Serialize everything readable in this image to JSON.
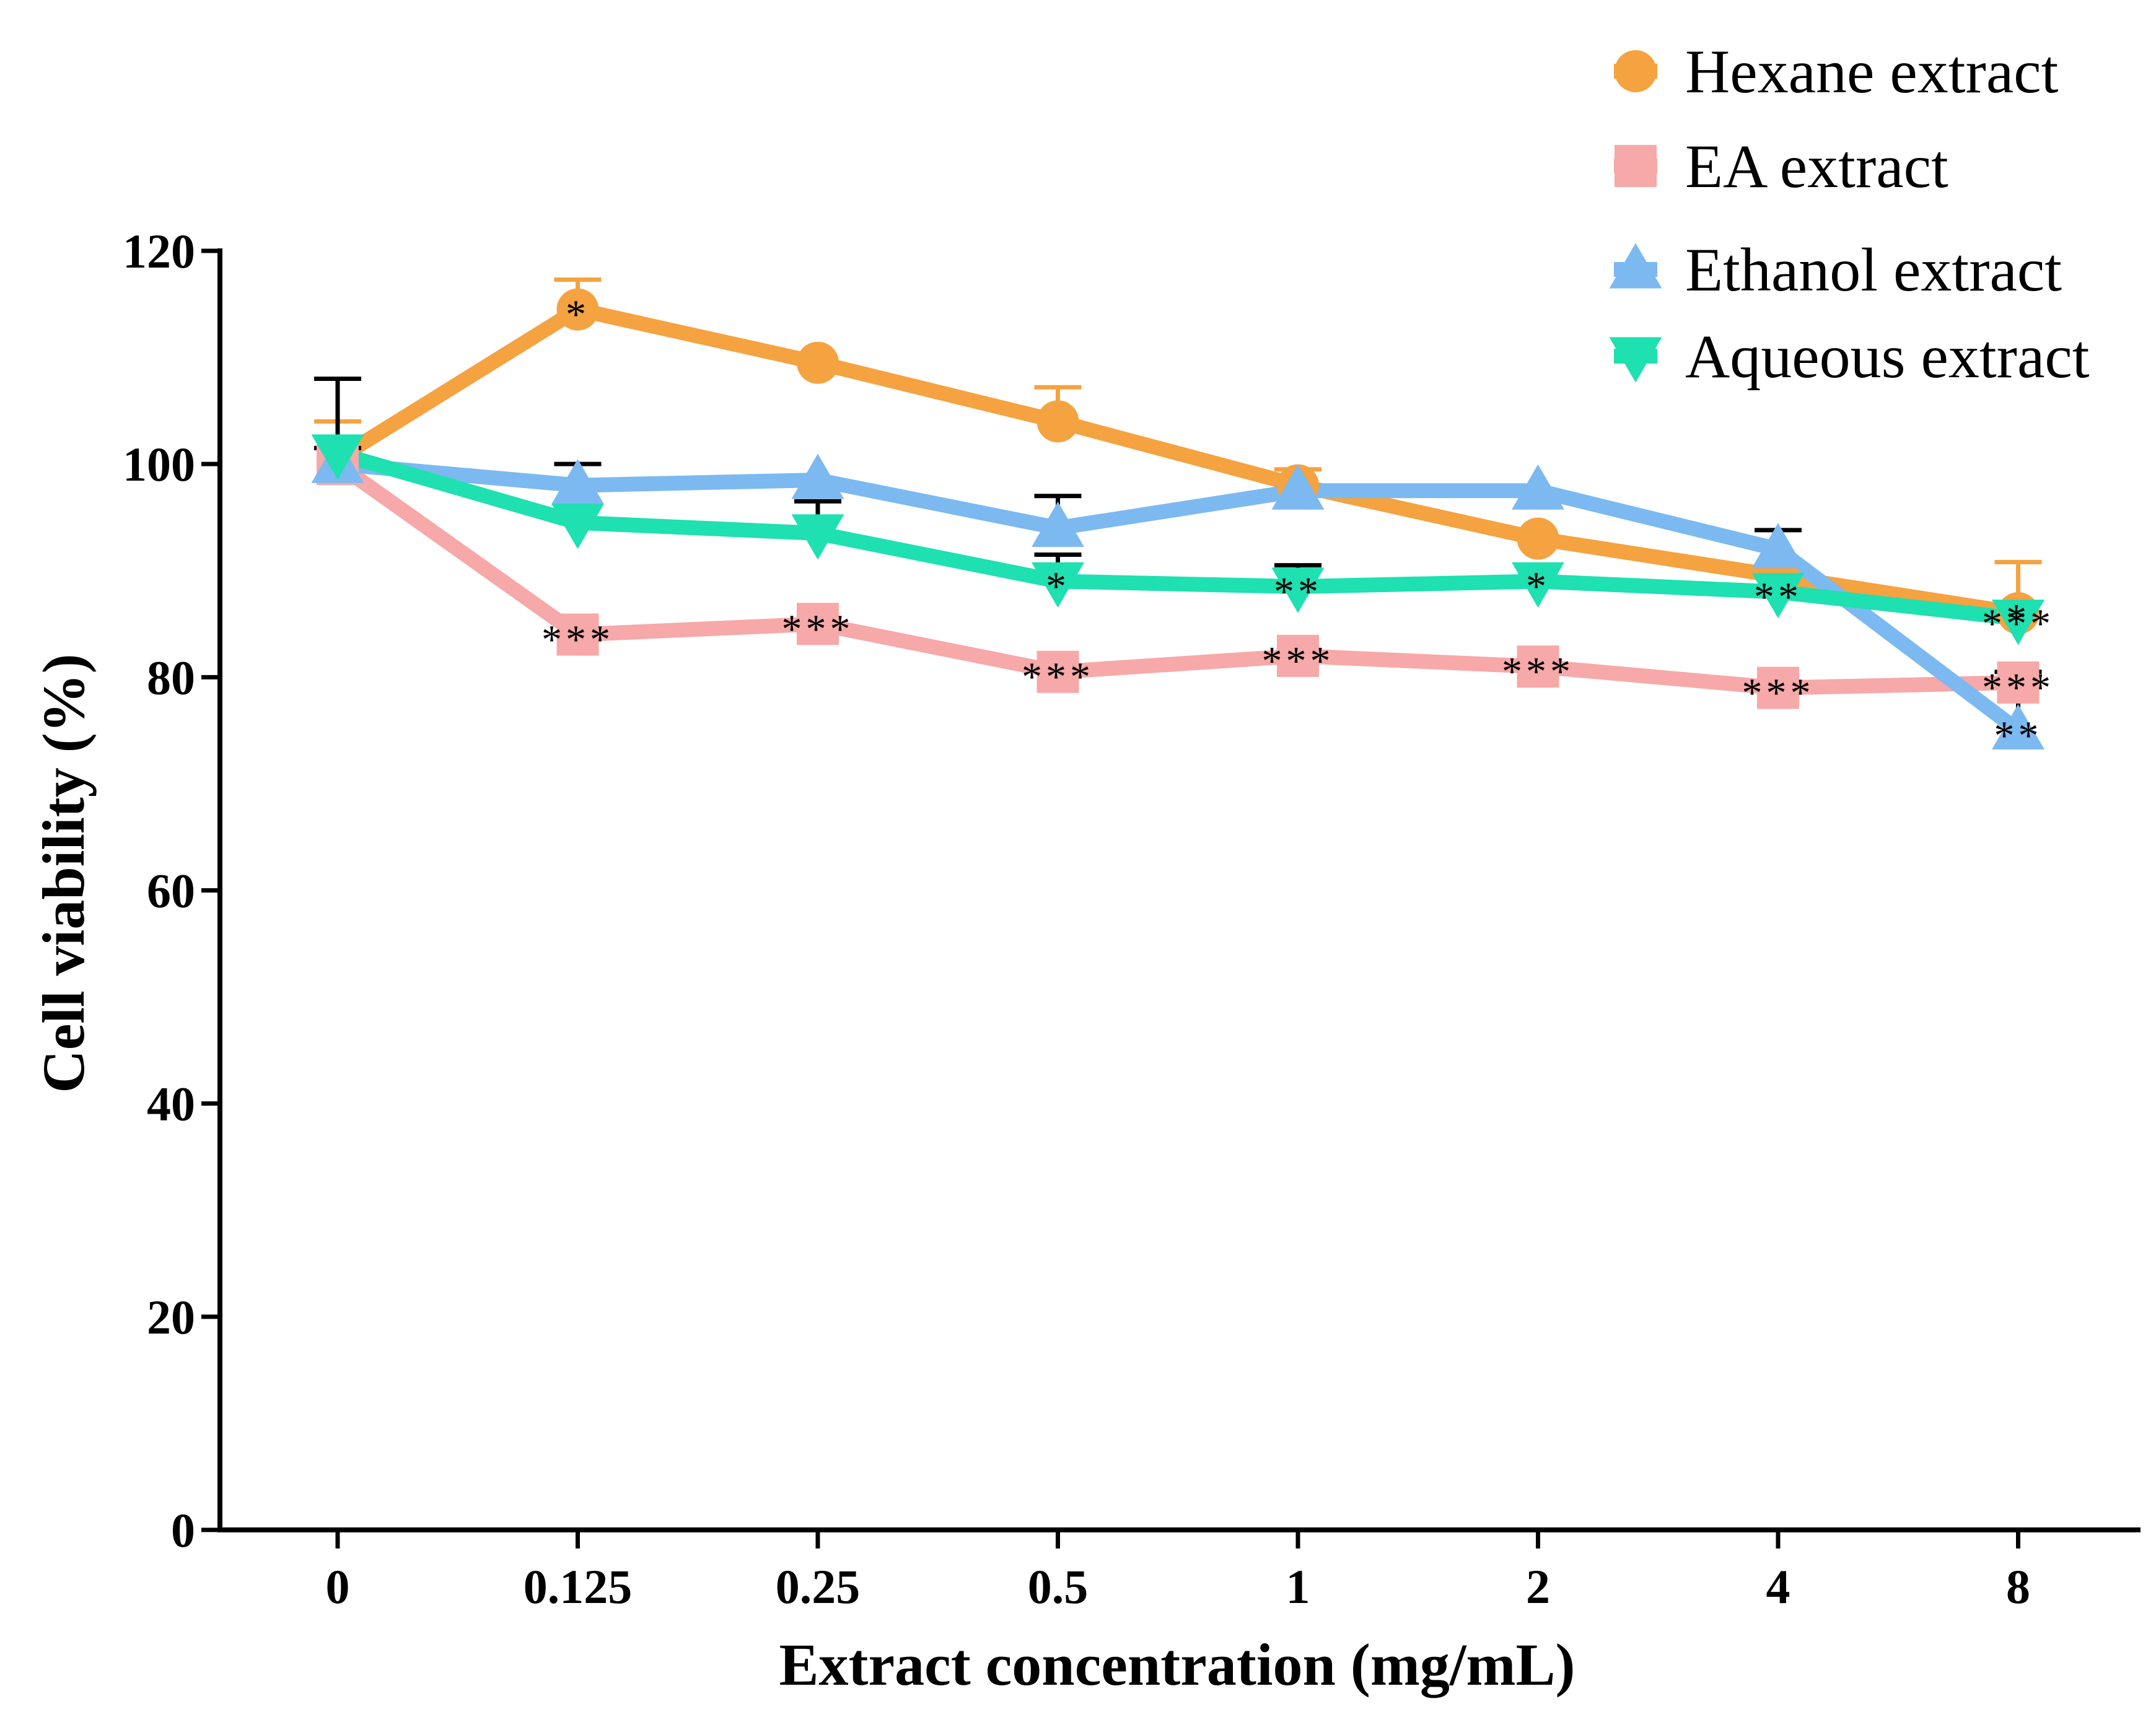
{
  "chart_data": {
    "type": "line",
    "title": "",
    "xlabel": "Extract concentration (mg/mL)",
    "ylabel": "Cell viability (%)",
    "x_categories": [
      "0",
      "0.125",
      "0.25",
      "0.5",
      "1",
      "2",
      "4",
      "8"
    ],
    "ylim": [
      0,
      120
    ],
    "yticks": [
      "0",
      "20",
      "40",
      "60",
      "80",
      "100",
      "120"
    ],
    "grid": false,
    "legend_position": "top-right",
    "series": [
      {
        "name": "Hexane extract",
        "color": "#F5A240",
        "marker": "circle",
        "values": [
          100.5,
          114.5,
          109.5,
          104,
          98,
          93,
          89.5,
          86
        ],
        "error": [
          3.5,
          2.8,
          0,
          3.2,
          1.5,
          0,
          0,
          4.8
        ],
        "error_color": "#F5A240",
        "significance": [
          "",
          "*",
          "",
          "",
          "",
          "",
          "",
          "*"
        ]
      },
      {
        "name": "EA extract",
        "color": "#F7A8A8",
        "marker": "square",
        "values": [
          100,
          84,
          85,
          80.5,
          82,
          81,
          79,
          79.5
        ],
        "error": [
          0,
          0,
          0,
          0,
          0,
          0,
          0,
          0
        ],
        "error_color": "#000000",
        "significance": [
          "",
          "***",
          "***",
          "***",
          "***",
          "***",
          "***",
          "***"
        ]
      },
      {
        "name": "Ethanol extract",
        "color": "#7CB9F0",
        "marker": "triangle-up",
        "values": [
          100,
          98,
          98.5,
          94,
          97.5,
          97.5,
          92,
          75
        ],
        "error": [
          1.5,
          2,
          0,
          3,
          0,
          0,
          1.8,
          5.5
        ],
        "error_color": "#000000",
        "significance": [
          "",
          "",
          "",
          "",
          "",
          "",
          "",
          "**"
        ]
      },
      {
        "name": "Aqueous extract",
        "color": "#1EE0B0",
        "marker": "triangle-down",
        "values": [
          101,
          94.5,
          93.5,
          89,
          88.5,
          89,
          88,
          85.5
        ],
        "error": [
          7,
          0,
          3,
          2.5,
          2,
          0,
          0,
          1.5
        ],
        "error_color": "#000000",
        "significance": [
          "",
          "",
          "",
          "*",
          "**",
          "*",
          "**",
          "***"
        ]
      }
    ]
  }
}
